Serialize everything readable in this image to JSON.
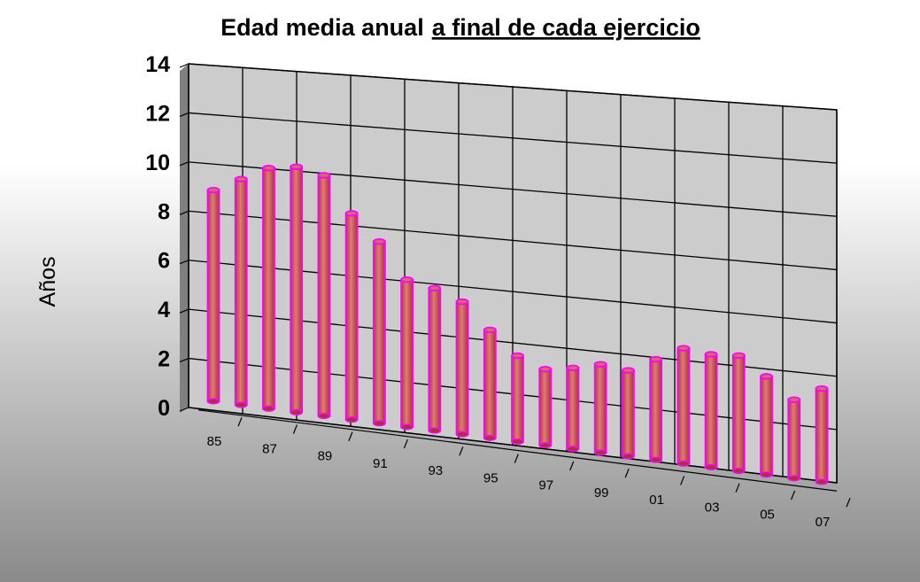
{
  "chart_data": {
    "type": "bar",
    "title": "Edad media anual",
    "title_underlined": "a final de cada ejercicio",
    "xlabel": "",
    "ylabel": "Años",
    "ylim": [
      0,
      14
    ],
    "y_ticks": [
      "0",
      "2",
      "4",
      "6",
      "8",
      "10",
      "12",
      "14"
    ],
    "categories": [
      "85",
      "86",
      "87",
      "88",
      "89",
      "90",
      "91",
      "92",
      "93",
      "94",
      "95",
      "96",
      "97",
      "98",
      "99",
      "00",
      "01",
      "02",
      "03",
      "04",
      "05",
      "06",
      "07"
    ],
    "x_tick_labels": [
      "85",
      "87",
      "89",
      "91",
      "93",
      "95",
      "97",
      "99",
      "01",
      "03",
      "05",
      "07"
    ],
    "values": [
      8.6,
      9.2,
      9.8,
      10.0,
      9.8,
      8.4,
      7.4,
      6.0,
      5.8,
      5.4,
      4.4,
      3.5,
      3.1,
      3.3,
      3.6,
      3.5,
      4.1,
      4.7,
      4.6,
      4.7,
      4.0,
      3.2,
      3.8
    ],
    "grid": true,
    "legend": "none",
    "colors": {
      "bar_body": "#cc5555",
      "bar_edge": "#ff00ff",
      "wall": "#cccccc",
      "background_top": "#ffffff",
      "background_bottom": "#8a8a8a"
    }
  }
}
